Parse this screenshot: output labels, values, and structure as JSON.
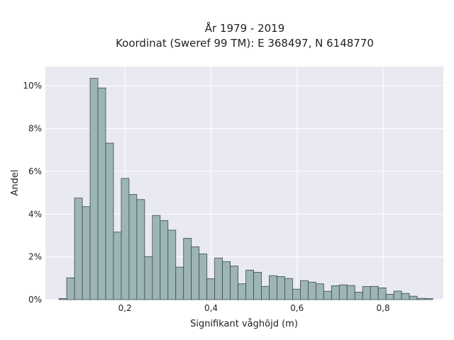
{
  "chart_data": {
    "type": "bar",
    "title": "År 1979 - 2019",
    "subtitle": "Koordinat (Sweref 99 TM): E 368497, N 6148770",
    "xlabel": "Signifikant våghöjd (m)",
    "ylabel": "Andel",
    "xlim": [
      0.015,
      0.94
    ],
    "ylim": [
      0,
      0.109
    ],
    "x_ticks": [
      0.2,
      0.4,
      0.6,
      0.8
    ],
    "x_tick_labels": [
      "0,2",
      "0,4",
      "0,6",
      "0,8"
    ],
    "y_ticks": [
      0,
      0.02,
      0.04,
      0.06,
      0.08,
      0.1
    ],
    "y_tick_labels": [
      "0%",
      "2%",
      "4%",
      "6%",
      "8%",
      "10%"
    ],
    "bin_width": 0.0181,
    "bins_start": [
      0.0465,
      0.0646,
      0.0827,
      0.1008,
      0.1189,
      0.137,
      0.1551,
      0.1732,
      0.1913,
      0.2094,
      0.2275,
      0.2456,
      0.2637,
      0.2818,
      0.2999,
      0.318,
      0.3361,
      0.3542,
      0.3723,
      0.3904,
      0.4085,
      0.4266,
      0.4447,
      0.4628,
      0.4809,
      0.499,
      0.5171,
      0.5352,
      0.5533,
      0.5714,
      0.5895,
      0.6076,
      0.6257,
      0.6438,
      0.6619,
      0.68,
      0.6981,
      0.7162,
      0.7343,
      0.7524,
      0.7705,
      0.7886,
      0.8067,
      0.8248,
      0.8429,
      0.861,
      0.8791,
      0.8972
    ],
    "values": [
      0.0005,
      0.0102,
      0.0475,
      0.0435,
      0.1035,
      0.099,
      0.0732,
      0.0316,
      0.0567,
      0.0492,
      0.0468,
      0.0201,
      0.0394,
      0.037,
      0.0325,
      0.0152,
      0.0287,
      0.0247,
      0.0214,
      0.0098,
      0.0195,
      0.0178,
      0.0157,
      0.0074,
      0.0138,
      0.0128,
      0.0062,
      0.0112,
      0.0108,
      0.0099,
      0.0049,
      0.0089,
      0.0082,
      0.0074,
      0.0039,
      0.0065,
      0.0069,
      0.0066,
      0.0035,
      0.0061,
      0.0062,
      0.0055,
      0.0025,
      0.004,
      0.0029,
      0.0016,
      0.0006,
      0.0005
    ],
    "grid": true,
    "legend": "none",
    "colors": {
      "bar_fill": "#9db5b4",
      "bar_stroke": "#3b4a4a",
      "plot_background": "#e9e9f2",
      "grid": "#ffffff",
      "text": "#222222"
    }
  }
}
